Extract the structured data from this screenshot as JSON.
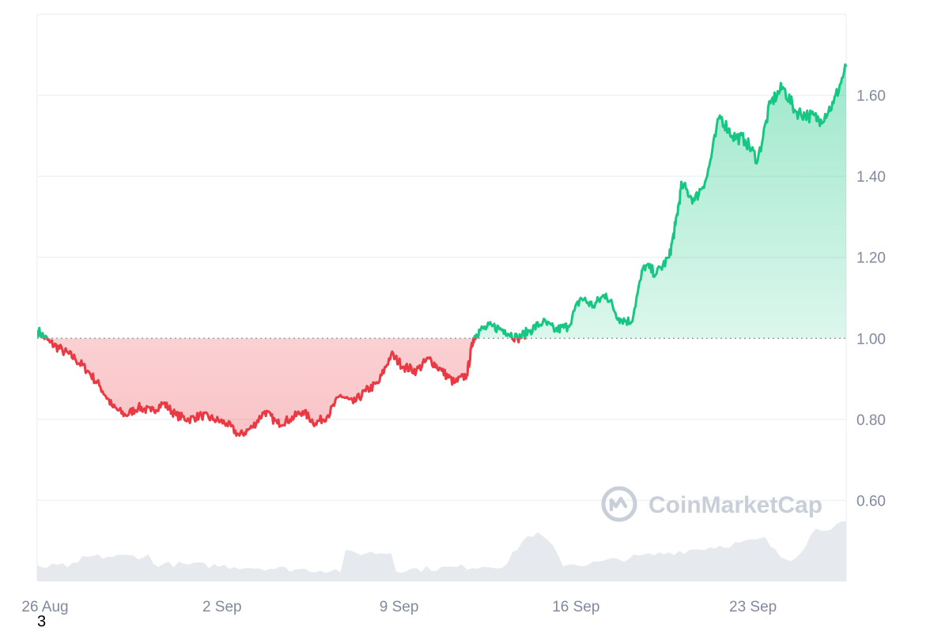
{
  "colors": {
    "up": "#16c784",
    "down": "#ea3943",
    "grid": "#eff2f5",
    "axis_text": "#808a9d",
    "baseline": "#9aa1ad",
    "volume": "#e6e9ee",
    "watermark": "#c9cfd9"
  },
  "watermark": {
    "text": "CoinMarketCap",
    "icon": "coinmarketcap-logo-icon"
  },
  "stray_label": "3",
  "chart_data": {
    "type": "line",
    "title": "",
    "xlabel": "",
    "ylabel": "",
    "baseline_value": 1.0,
    "ylim": [
      0.4,
      1.8
    ],
    "y_ticks": [
      {
        "value": 0.6,
        "label": "0.60"
      },
      {
        "value": 0.8,
        "label": "0.80"
      },
      {
        "value": 1.0,
        "label": "1.00"
      },
      {
        "value": 1.2,
        "label": "1.20"
      },
      {
        "value": 1.4,
        "label": "1.40"
      },
      {
        "value": 1.6,
        "label": "1.60"
      }
    ],
    "x_range": [
      "2024-08-26",
      "2024-09-27"
    ],
    "x_ticks": [
      {
        "date": "2024-08-26",
        "label": "26 Aug"
      },
      {
        "date": "2024-09-02",
        "label": "2 Sep"
      },
      {
        "date": "2024-09-09",
        "label": "9 Sep"
      },
      {
        "date": "2024-09-16",
        "label": "16 Sep"
      },
      {
        "date": "2024-09-23",
        "label": "23 Sep"
      }
    ],
    "grid": true,
    "series": [
      {
        "data": [
          [
            "2024-08-26 00:00",
            1.02
          ],
          [
            "2024-08-26 12:00",
            0.99
          ],
          [
            "2024-08-27 00:00",
            0.97
          ],
          [
            "2024-08-27 12:00",
            0.95
          ],
          [
            "2024-08-28 00:00",
            0.92
          ],
          [
            "2024-08-28 12:00",
            0.88
          ],
          [
            "2024-08-29 00:00",
            0.83
          ],
          [
            "2024-08-29 12:00",
            0.81
          ],
          [
            "2024-08-30 00:00",
            0.83
          ],
          [
            "2024-08-30 12:00",
            0.82
          ],
          [
            "2024-08-31 00:00",
            0.84
          ],
          [
            "2024-08-31 12:00",
            0.81
          ],
          [
            "2024-09-01 00:00",
            0.8
          ],
          [
            "2024-09-01 12:00",
            0.81
          ],
          [
            "2024-09-02 00:00",
            0.8
          ],
          [
            "2024-09-02 12:00",
            0.79
          ],
          [
            "2024-09-03 00:00",
            0.76
          ],
          [
            "2024-09-03 12:00",
            0.78
          ],
          [
            "2024-09-04 00:00",
            0.82
          ],
          [
            "2024-09-04 12:00",
            0.79
          ],
          [
            "2024-09-05 00:00",
            0.8
          ],
          [
            "2024-09-05 12:00",
            0.82
          ],
          [
            "2024-09-06 00:00",
            0.79
          ],
          [
            "2024-09-06 12:00",
            0.81
          ],
          [
            "2024-09-07 00:00",
            0.86
          ],
          [
            "2024-09-07 12:00",
            0.84
          ],
          [
            "2024-09-08 00:00",
            0.87
          ],
          [
            "2024-09-08 12:00",
            0.89
          ],
          [
            "2024-09-09 00:00",
            0.96
          ],
          [
            "2024-09-09 12:00",
            0.93
          ],
          [
            "2024-09-10 00:00",
            0.92
          ],
          [
            "2024-09-10 12:00",
            0.95
          ],
          [
            "2024-09-11 00:00",
            0.92
          ],
          [
            "2024-09-11 12:00",
            0.89
          ],
          [
            "2024-09-12 00:00",
            0.91
          ],
          [
            "2024-09-12 06:00",
            1.0
          ],
          [
            "2024-09-12 12:00",
            1.02
          ],
          [
            "2024-09-13 00:00",
            1.03
          ],
          [
            "2024-09-13 12:00",
            1.02
          ],
          [
            "2024-09-14 00:00",
            1.0
          ],
          [
            "2024-09-14 12:00",
            1.02
          ],
          [
            "2024-09-15 00:00",
            1.04
          ],
          [
            "2024-09-15 12:00",
            1.02
          ],
          [
            "2024-09-16 00:00",
            1.03
          ],
          [
            "2024-09-16 12:00",
            1.1
          ],
          [
            "2024-09-17 00:00",
            1.08
          ],
          [
            "2024-09-17 12:00",
            1.11
          ],
          [
            "2024-09-18 00:00",
            1.05
          ],
          [
            "2024-09-18 12:00",
            1.04
          ],
          [
            "2024-09-19 00:00",
            1.18
          ],
          [
            "2024-09-19 12:00",
            1.16
          ],
          [
            "2024-09-20 00:00",
            1.2
          ],
          [
            "2024-09-20 06:00",
            1.28
          ],
          [
            "2024-09-20 12:00",
            1.38
          ],
          [
            "2024-09-21 00:00",
            1.34
          ],
          [
            "2024-09-21 12:00",
            1.4
          ],
          [
            "2024-09-22 00:00",
            1.55
          ],
          [
            "2024-09-22 12:00",
            1.5
          ],
          [
            "2024-09-23 00:00",
            1.49
          ],
          [
            "2024-09-23 12:00",
            1.44
          ],
          [
            "2024-09-24 00:00",
            1.58
          ],
          [
            "2024-09-24 12:00",
            1.62
          ],
          [
            "2024-09-25 00:00",
            1.56
          ],
          [
            "2024-09-25 12:00",
            1.55
          ],
          [
            "2024-09-26 00:00",
            1.54
          ],
          [
            "2024-09-26 12:00",
            1.58
          ],
          [
            "2024-09-27 00:00",
            1.67
          ]
        ]
      }
    ]
  }
}
